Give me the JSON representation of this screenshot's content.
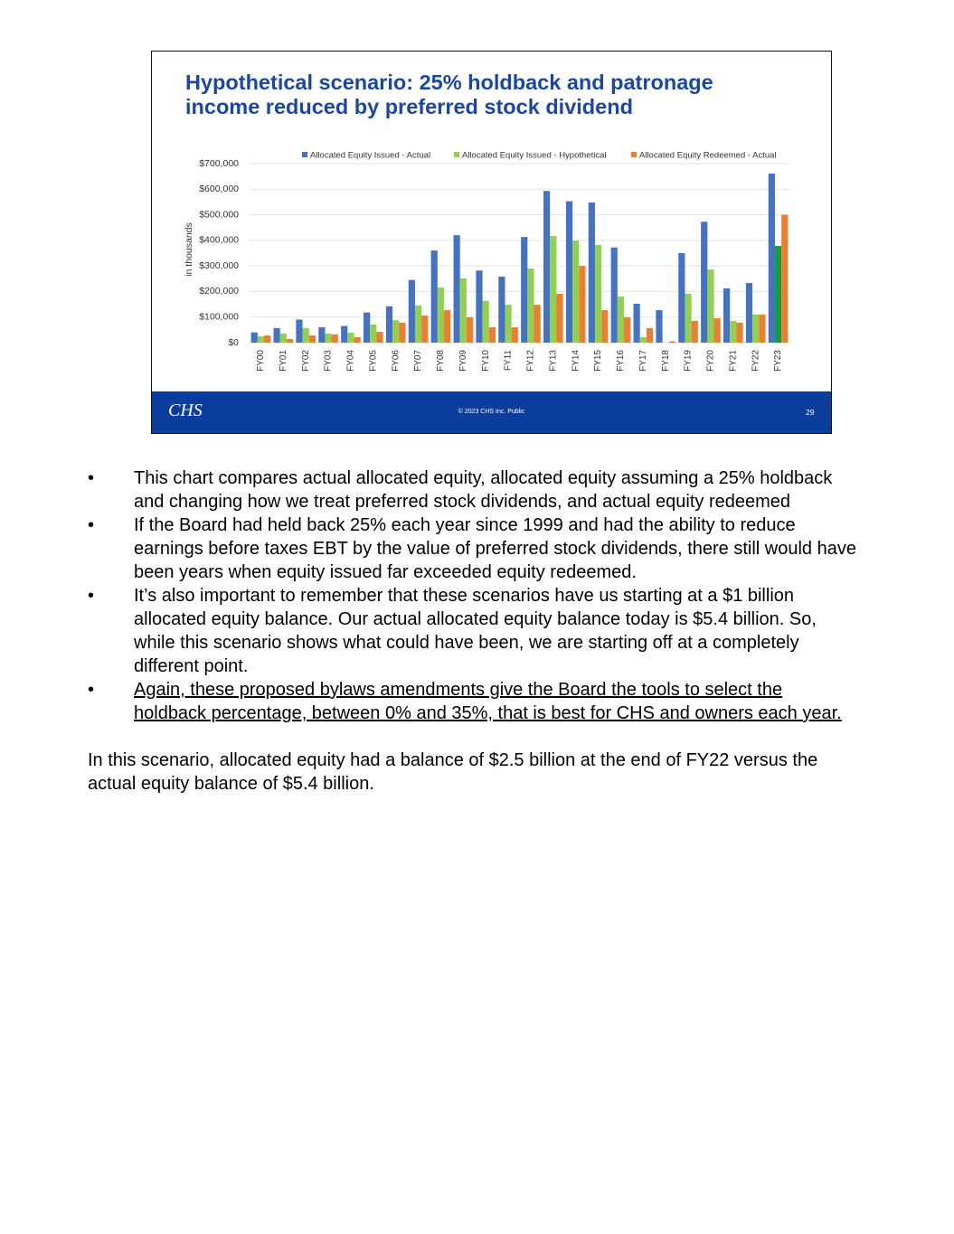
{
  "chart_data": {
    "type": "bar",
    "title": "Hypothetical scenario: 25% holdback and patronage income reduced by preferred stock dividend",
    "ylabel": "in thousands",
    "categories": [
      "FY00",
      "FY01",
      "FY02",
      "FY03",
      "FY04",
      "FY05",
      "FY06",
      "FY07",
      "FY08",
      "FY09",
      "FY10",
      "FY11",
      "FY12",
      "FY13",
      "FY14",
      "FY15",
      "FY16",
      "FY17",
      "FY18",
      "FY19",
      "FY20",
      "FY21",
      "FY22",
      "FY23"
    ],
    "series": [
      {
        "name": "Allocated Equity Issued - Actual",
        "color": "#4472c4",
        "values": [
          40000,
          57000,
          90000,
          60000,
          65000,
          118000,
          142000,
          245000,
          360000,
          420000,
          282000,
          258000,
          413000,
          593000,
          553000,
          548000,
          372000,
          152000,
          127000,
          350000,
          473000,
          212000,
          233000,
          661000
        ]
      },
      {
        "name": "Allocated Equity Issued - Hypothetical",
        "color": "#92d050",
        "colors": [
          "#92d050",
          "#92d050",
          "#92d050",
          "#92d050",
          "#92d050",
          "#92d050",
          "#92d050",
          "#92d050",
          "#92d050",
          "#92d050",
          "#92d050",
          "#92d050",
          "#92d050",
          "#92d050",
          "#92d050",
          "#92d050",
          "#92d050",
          "#92d050",
          "#92d050",
          "#92d050",
          "#92d050",
          "#92d050",
          "#92d050",
          "#1e9b3d"
        ],
        "values": [
          25000,
          35000,
          57000,
          35000,
          39000,
          71000,
          88000,
          145000,
          216000,
          251000,
          163000,
          148000,
          290000,
          417000,
          399000,
          382000,
          180000,
          21000,
          0,
          191000,
          286000,
          85000,
          110000,
          378000
        ]
      },
      {
        "name": "Allocated Equity Redeemed - Actual",
        "color": "#ed7d31",
        "values": [
          28000,
          14000,
          28000,
          32000,
          21000,
          42000,
          78000,
          106000,
          127000,
          99000,
          60000,
          60000,
          148000,
          191000,
          300000,
          127000,
          99000,
          57000,
          5000,
          85000,
          95000,
          78000,
          110000,
          500000
        ]
      }
    ],
    "ylim": [
      0,
      700000
    ],
    "yticks": [
      {
        "value": 0,
        "label": "$0"
      },
      {
        "value": 100000,
        "label": "$100,000"
      },
      {
        "value": 200000,
        "label": "$200,000"
      },
      {
        "value": 300000,
        "label": "$300,000"
      },
      {
        "value": 400000,
        "label": "$400,000"
      },
      {
        "value": 500000,
        "label": "$500,000"
      },
      {
        "value": 600000,
        "label": "$600,000"
      },
      {
        "value": 700000,
        "label": "$700,000"
      }
    ],
    "grid": true,
    "legend": "top"
  },
  "slide": {
    "logo": "CHS",
    "copyright": "© 2023 CHS Inc. Public",
    "page_number": "29"
  },
  "notes": {
    "bullets": [
      "This chart compares actual allocated equity, allocated equity assuming a 25% holdback and changing how we treat preferred stock dividends, and actual equity redeemed",
      "If the Board had held back 25% each year since 1999 and had the ability to reduce earnings before taxes EBT by the value of preferred stock dividends, there still would have been years when equity issued far exceeded equity redeemed.",
      "It’s also important to remember that these scenarios have us starting at a $1 billion allocated equity balance. Our actual allocated equity balance today is $5.4 billion. So, while this scenario shows what could have been, we are starting off at a completely different point.",
      "Again, these proposed bylaws amendments give the Board the tools to select the holdback percentage, between 0% and 35%, that is best for CHS and owners each year."
    ],
    "paragraph": "In this scenario, allocated equity had a balance of $2.5 billion at the end of FY22 versus the actual equity balance of $5.4 billion."
  }
}
